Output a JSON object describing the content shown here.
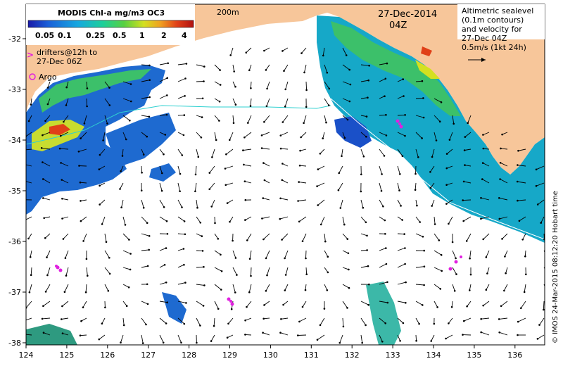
{
  "map": {
    "title": "MODIS Chl-a mg/m3 OC3",
    "colorbar_ticks": [
      "0.05",
      "0.1",
      "0.25",
      "0.5",
      "1",
      "2",
      "4"
    ],
    "colorbar_colors": [
      "#1a1aa8",
      "#1a5fd8",
      "#16a8e0",
      "#1ccf9a",
      "#58d040",
      "#d4e020",
      "#f0a020",
      "#e04018",
      "#b01010"
    ],
    "isobath_label": "200m",
    "date": "27-Dec-2014",
    "time": "04Z",
    "altimetry_note": [
      "Altimetric sealevel",
      "(0.1m contours)",
      "and velocity for",
      "27-Dec 04Z",
      "0.5m/s (1kt 24h)"
    ],
    "drifters_label": [
      "drifters@12h to",
      "27-Dec 06Z"
    ],
    "argo_label": "Argo",
    "credit": "© IMOS 24-Mar-2015 08:12:20 Hobart time",
    "x_ticks": [
      "124",
      "125",
      "126",
      "127",
      "128",
      "129",
      "130",
      "131",
      "132",
      "133",
      "134",
      "135",
      "136"
    ],
    "y_ticks": [
      "-32",
      "-33",
      "-34",
      "-35",
      "-36",
      "-37",
      "-38"
    ],
    "land_color": "#f7c69a",
    "drifter_color": "#e020e0"
  }
}
